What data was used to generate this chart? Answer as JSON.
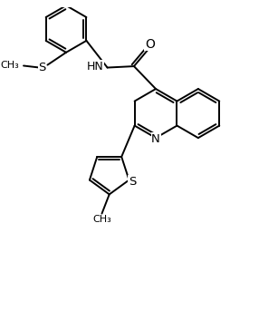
{
  "background_color": "#ffffff",
  "line_color": "#000000",
  "line_width": 1.4,
  "font_size": 8.5,
  "fig_width": 3.07,
  "fig_height": 3.53,
  "dpi": 100,
  "xlim": [
    0,
    10
  ],
  "ylim": [
    0,
    11.5
  ]
}
